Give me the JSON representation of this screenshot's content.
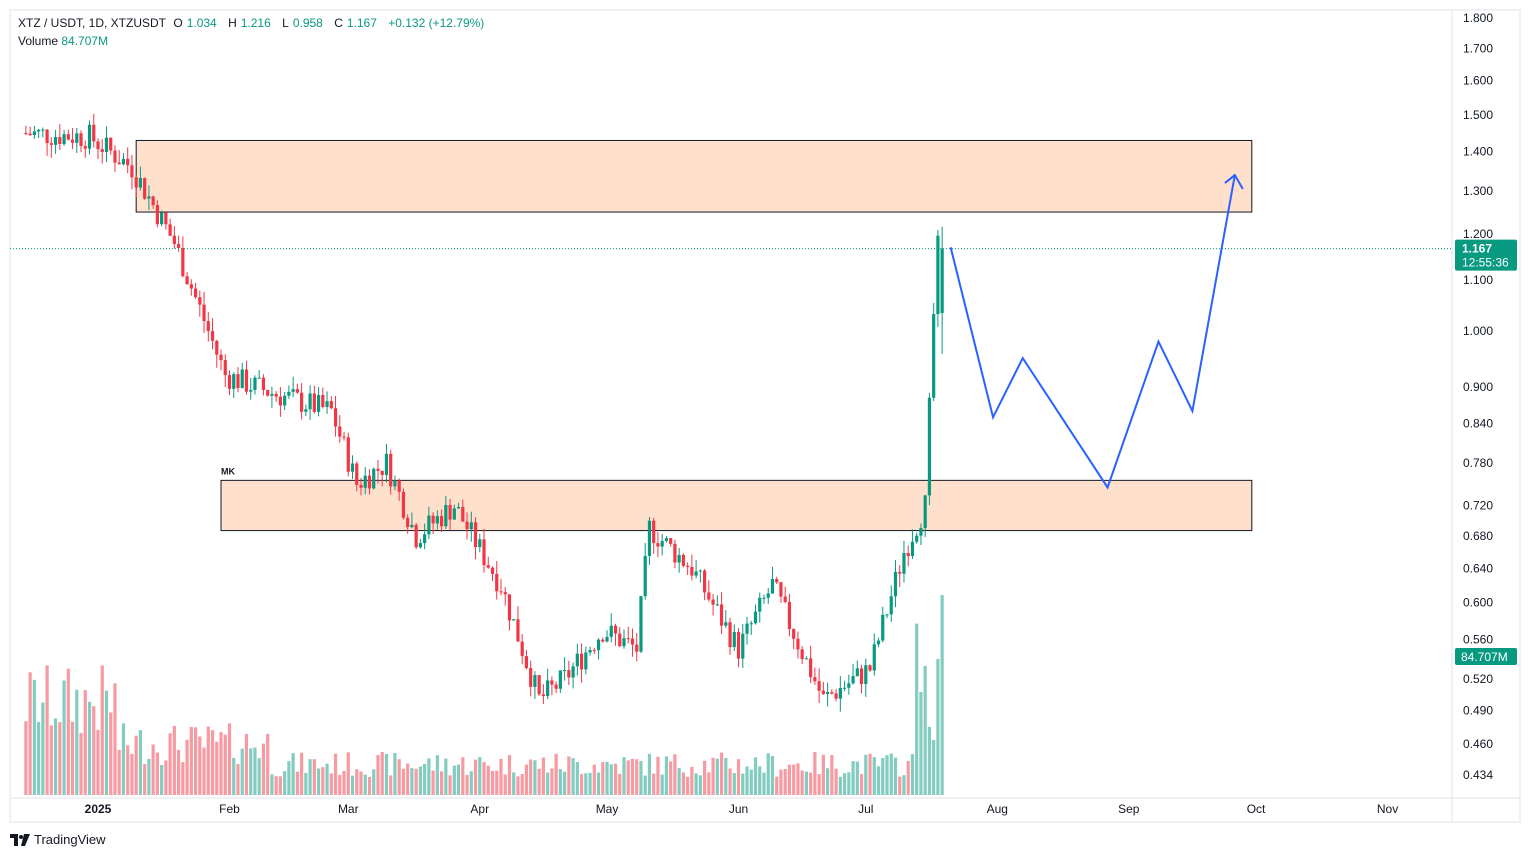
{
  "header": {
    "symbol": "XTZ / USDT, 1D, XTZUSDT",
    "o_label": "O",
    "o_value": "1.034",
    "h_label": "H",
    "h_value": "1.216",
    "l_label": "L",
    "l_value": "0.958",
    "c_label": "C",
    "c_value": "1.167",
    "change": "+0.132 (+12.79%)",
    "volume_label": "Volume",
    "volume_value": "84.707M"
  },
  "brand": {
    "name": "TradingView",
    "logo_icon": "tradingview-logo-icon"
  },
  "price_tag": {
    "price": "1.167",
    "countdown": "12:55:36",
    "color": "#089981"
  },
  "volume_tag": {
    "value": "84.707M",
    "color": "#089981"
  },
  "zone_label": "MK",
  "colors": {
    "up": "#089981",
    "down": "#f23645",
    "zone_fill": "#ffe0cc",
    "projection": "#2962ff"
  },
  "chart_data": {
    "type": "candlestick",
    "title": "",
    "y_scale": "log",
    "y_ticks": [
      "1.800",
      "1.700",
      "1.600",
      "1.500",
      "1.400",
      "1.300",
      "1.200",
      "1.100",
      "1.000",
      "0.900",
      "0.840",
      "0.780",
      "0.720",
      "0.680",
      "0.640",
      "0.600",
      "0.560",
      "0.520",
      "0.490",
      "0.460",
      "0.434"
    ],
    "x_ticks": [
      "2025",
      "Feb",
      "Mar",
      "Apr",
      "May",
      "Jun",
      "Jul",
      "Aug",
      "Sep",
      "Oct",
      "Nov"
    ],
    "last_bar": {
      "open": 1.034,
      "high": 1.216,
      "low": 0.958,
      "close": 1.167,
      "volume": "84.707M"
    },
    "zones": [
      {
        "name": "resistance",
        "from": "2025-01-10",
        "to": "2025-09-30",
        "low": 1.25,
        "high": 1.43
      },
      {
        "name": "support",
        "label": "MK",
        "from": "2025-01-30",
        "to": "2025-09-30",
        "low": 0.687,
        "high": 0.755
      }
    ],
    "projection": [
      {
        "date": "2025-07-21",
        "price": 1.17
      },
      {
        "date": "2025-07-31",
        "price": 0.85
      },
      {
        "date": "2025-08-07",
        "price": 0.95
      },
      {
        "date": "2025-08-27",
        "price": 0.745
      },
      {
        "date": "2025-09-08",
        "price": 0.98
      },
      {
        "date": "2025-09-16",
        "price": 0.86
      },
      {
        "date": "2025-09-26",
        "price": 1.34
      }
    ],
    "anchors": [
      {
        "date": "2024-12-15",
        "price": 1.45
      },
      {
        "date": "2024-12-31",
        "price": 1.44
      },
      {
        "date": "2025-01-10",
        "price": 1.36
      },
      {
        "date": "2025-01-20",
        "price": 1.18
      },
      {
        "date": "2025-02-01",
        "price": 0.92
      },
      {
        "date": "2025-02-12",
        "price": 0.89
      },
      {
        "date": "2025-02-26",
        "price": 0.86
      },
      {
        "date": "2025-03-04",
        "price": 0.75
      },
      {
        "date": "2025-03-11",
        "price": 0.78
      },
      {
        "date": "2025-03-18",
        "price": 0.68
      },
      {
        "date": "2025-03-27",
        "price": 0.72
      },
      {
        "date": "2025-04-07",
        "price": 0.62
      },
      {
        "date": "2025-04-16",
        "price": 0.5
      },
      {
        "date": "2025-04-22",
        "price": 0.52
      },
      {
        "date": "2025-05-01",
        "price": 0.57
      },
      {
        "date": "2025-05-09",
        "price": 0.55
      },
      {
        "date": "2025-05-12",
        "price": 0.69
      },
      {
        "date": "2025-05-22",
        "price": 0.64
      },
      {
        "date": "2025-06-02",
        "price": 0.55
      },
      {
        "date": "2025-06-10",
        "price": 0.62
      },
      {
        "date": "2025-06-22",
        "price": 0.5
      },
      {
        "date": "2025-07-03",
        "price": 0.53
      },
      {
        "date": "2025-07-11",
        "price": 0.66
      },
      {
        "date": "2025-07-16",
        "price": 0.72
      },
      {
        "date": "2025-07-18",
        "price": 1.03
      },
      {
        "date": "2025-07-19",
        "price": 1.167
      }
    ],
    "volume_profile": [
      {
        "from": "2024-12-15",
        "to": "2025-01-05",
        "level": 0.55
      },
      {
        "from": "2025-01-05",
        "to": "2025-02-10",
        "level": 0.3
      },
      {
        "from": "2025-02-10",
        "to": "2025-07-12",
        "level": 0.18
      },
      {
        "from": "2025-07-12",
        "to": "2025-07-19",
        "level": 1.0
      }
    ]
  }
}
